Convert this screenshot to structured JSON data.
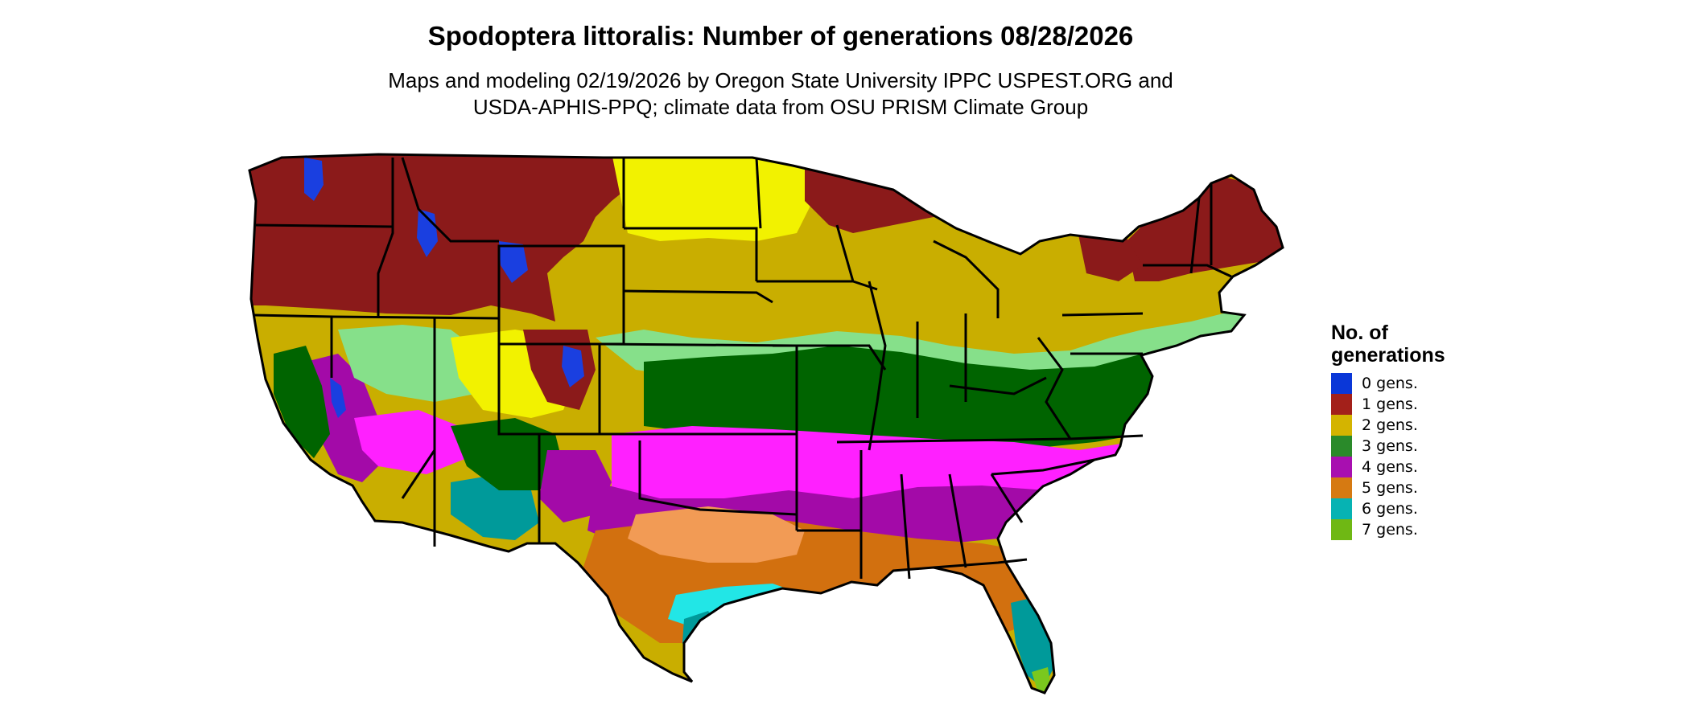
{
  "title": "Spodoptera littoralis: Number of generations 08/28/2026",
  "subtitle": {
    "line1": "Maps and modeling 02/19/2026 by Oregon State University IPPC USPEST.ORG and",
    "line2": "USDA-APHIS-PPQ; climate data from OSU PRISM Climate Group"
  },
  "legend": {
    "title_line1": "No. of",
    "title_line2": "generations",
    "items": [
      {
        "label": "0 gens.",
        "color": "#0a37d8"
      },
      {
        "label": "1 gens.",
        "color": "#a3201a"
      },
      {
        "label": "2 gens.",
        "color": "#d4b400"
      },
      {
        "label": "3 gens.",
        "color": "#2a8a2a"
      },
      {
        "label": "4 gens.",
        "color": "#a80fb0"
      },
      {
        "label": "5 gens.",
        "color": "#d67a12"
      },
      {
        "label": "6 gens.",
        "color": "#06b3b3"
      },
      {
        "label": "7 gens.",
        "color": "#6fb814"
      }
    ]
  },
  "map_colors": {
    "zero": "#1a3fe0",
    "one": "#8b1a1a",
    "two": "#c9ae00",
    "two_light": "#f2f200",
    "three_light": "#86e08a",
    "three": "#006400",
    "four": "#a30aa8",
    "four_light": "#ff20ff",
    "five": "#d2700f",
    "five_light": "#f29b55",
    "six": "#009a9a",
    "six_light": "#22e6e6",
    "seven": "#7ac81e",
    "border": "#000000"
  }
}
